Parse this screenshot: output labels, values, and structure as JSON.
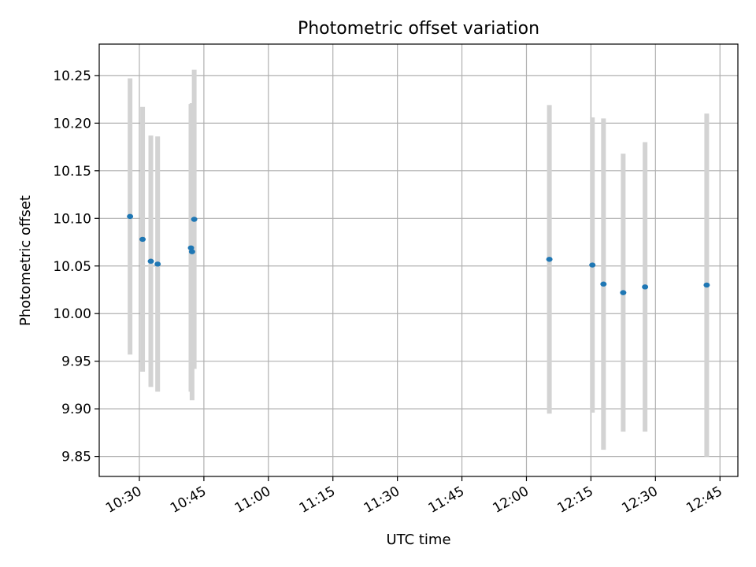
{
  "chart_data": {
    "type": "scatter",
    "title": "Photometric offset variation",
    "xlabel": "UTC time",
    "ylabel": "Photometric offset",
    "x_tick_labels": [
      "10:30",
      "10:45",
      "11:00",
      "11:15",
      "11:30",
      "11:45",
      "12:00",
      "12:15",
      "12:30",
      "12:45"
    ],
    "x_ticks": [
      "10:30",
      "10:45",
      "11:00",
      "11:15",
      "11:30",
      "11:45",
      "12:00",
      "12:15",
      "12:30",
      "12:45"
    ],
    "xlim": [
      "10:20:40",
      "12:49:10"
    ],
    "y_ticks": [
      9.85,
      9.9,
      9.95,
      10.0,
      10.05,
      10.1,
      10.15,
      10.2,
      10.25
    ],
    "y_tick_labels": [
      "9.85",
      "9.90",
      "9.95",
      "10.00",
      "10.05",
      "10.10",
      "10.15",
      "10.20",
      "10.25"
    ],
    "ylim": [
      9.829,
      10.283
    ],
    "grid": true,
    "marker_color": "#1f77b4",
    "errorbar_color": "#d3d3d3",
    "series": [
      {
        "points": [
          {
            "t": "10:27:50",
            "y": 10.102,
            "err": 0.145
          },
          {
            "t": "10:30:45",
            "y": 10.078,
            "err": 0.139
          },
          {
            "t": "10:32:40",
            "y": 10.055,
            "err": 0.132
          },
          {
            "t": "10:34:15",
            "y": 10.052,
            "err": 0.134
          },
          {
            "t": "10:42:00",
            "y": 10.069,
            "err": 0.151
          },
          {
            "t": "10:42:15",
            "y": 10.065,
            "err": 0.156
          },
          {
            "t": "10:42:45",
            "y": 10.099,
            "err": 0.157
          },
          {
            "t": "12:05:20",
            "y": 10.057,
            "err": 0.162
          },
          {
            "t": "12:15:20",
            "y": 10.051,
            "err": 0.155
          },
          {
            "t": "12:17:55",
            "y": 10.031,
            "err": 0.174
          },
          {
            "t": "12:22:30",
            "y": 10.022,
            "err": 0.146
          },
          {
            "t": "12:27:35",
            "y": 10.028,
            "err": 0.152
          },
          {
            "t": "12:41:55",
            "y": 10.03,
            "err": 0.18
          }
        ]
      }
    ]
  }
}
